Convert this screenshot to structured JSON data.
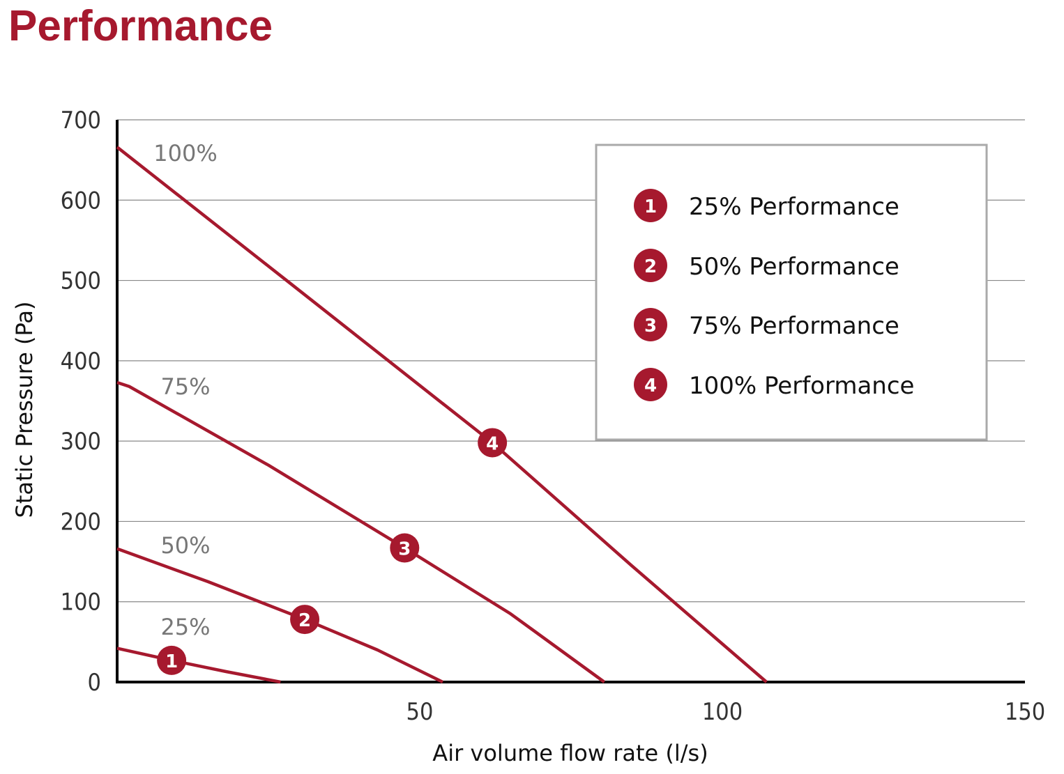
{
  "title": "Performance",
  "chart_data": {
    "type": "line",
    "title": "Performance",
    "xlabel": "Air volume flow rate (l/s)",
    "ylabel": "Static Pressure (Pa)",
    "xlim": [
      0,
      150
    ],
    "ylim": [
      0,
      700
    ],
    "x_ticks": [
      "50",
      "100",
      "150"
    ],
    "y_ticks": [
      "0",
      "100",
      "200",
      "300",
      "400",
      "500",
      "600",
      "700"
    ],
    "grid": "horizontal",
    "legend_placement": "top-right",
    "color": "#a6192e",
    "series": [
      {
        "name": "25% Performance",
        "curve_label": "25%",
        "marker": "1",
        "points": [
          [
            0,
            42
          ],
          [
            9,
            27
          ],
          [
            18,
            13
          ],
          [
            27,
            0
          ]
        ],
        "marker_at": [
          9,
          27
        ]
      },
      {
        "name": "50% Performance",
        "curve_label": "50%",
        "marker": "2",
        "points": [
          [
            0,
            166
          ],
          [
            15,
            125
          ],
          [
            31,
            78
          ],
          [
            43,
            40
          ],
          [
            53.8,
            0
          ]
        ],
        "marker_at": [
          31,
          78
        ]
      },
      {
        "name": "75% Performance",
        "curve_label": "75%",
        "marker": "3",
        "points": [
          [
            0,
            373
          ],
          [
            2,
            368
          ],
          [
            25,
            270
          ],
          [
            47.5,
            167
          ],
          [
            65,
            85
          ],
          [
            80.5,
            0
          ]
        ],
        "marker_at": [
          47.5,
          167
        ]
      },
      {
        "name": "100% Performance",
        "curve_label": "100%",
        "marker": "4",
        "points": [
          [
            0,
            666
          ],
          [
            28,
            500
          ],
          [
            62,
            298
          ],
          [
            85,
            145
          ],
          [
            107.3,
            0
          ]
        ],
        "marker_at": [
          62,
          298
        ]
      }
    ]
  }
}
